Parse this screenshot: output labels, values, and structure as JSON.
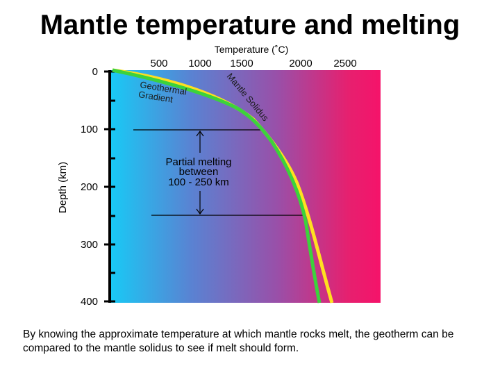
{
  "slide": {
    "title": "Mantle temperature and melting",
    "caption": "By knowing the approximate temperature at which mantle rocks melt, the geotherm can be compared to the mantle solidus to see if melt should form."
  },
  "diagram": {
    "x_axis": {
      "label": "Temperature (˚C)",
      "ticks": [
        "500",
        "1000",
        "1500",
        "2000",
        "2500"
      ]
    },
    "y_axis": {
      "label": "Depth (km)",
      "ticks": [
        "0",
        "100",
        "200",
        "300",
        "400"
      ]
    },
    "curves": [
      {
        "label_lines": [
          "Geothermal",
          "Gradient"
        ],
        "color": "#3cd23c"
      },
      {
        "label": "Mantle Solidus",
        "color": "#ffe020"
      }
    ],
    "annotation": {
      "lines": [
        "Partial melting",
        "between",
        "100 - 250 km"
      ]
    },
    "background_gradient": [
      "#19c9f5",
      "#5a82d2",
      "#9a4fa8",
      "#e6206f",
      "#f5136a"
    ]
  }
}
